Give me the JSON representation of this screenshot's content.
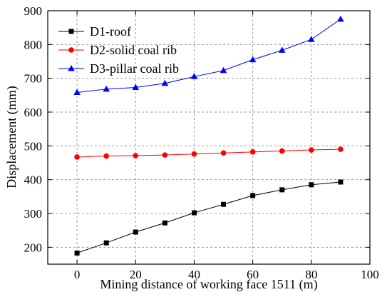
{
  "chart_data": {
    "type": "line",
    "xlabel": "Mining distance of working face 1511 (m)",
    "ylabel": "Displacement (mm)",
    "xlim": [
      -10,
      100
    ],
    "ylim": [
      150,
      900
    ],
    "xticks": [
      0,
      20,
      40,
      60,
      80,
      100
    ],
    "yticks": [
      200,
      300,
      400,
      500,
      600,
      700,
      800,
      900
    ],
    "grid": true,
    "legend_position": "top-left",
    "x": [
      0,
      10,
      20,
      30,
      40,
      50,
      60,
      70,
      80,
      90
    ],
    "series": [
      {
        "name": "D1-roof",
        "values": [
          183,
          213,
          245,
          272,
          302,
          327,
          353,
          370,
          385,
          393
        ],
        "color": "#000000",
        "marker": "square"
      },
      {
        "name": "D2-solid coal rib",
        "values": [
          467,
          470,
          471,
          473,
          476,
          479,
          482,
          485,
          488,
          490
        ],
        "color": "#ff0000",
        "marker": "circle"
      },
      {
        "name": "D3-pillar coal rib",
        "values": [
          658,
          668,
          673,
          685,
          705,
          723,
          755,
          783,
          815,
          875
        ],
        "color": "#0000ff",
        "marker": "triangle"
      }
    ]
  }
}
